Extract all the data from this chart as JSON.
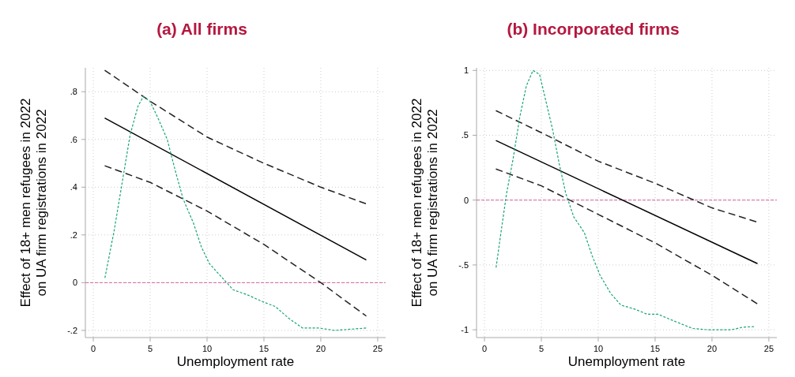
{
  "chart_data": [
    {
      "type": "line",
      "title": "(a) All firms",
      "xlabel": "Unemployment rate",
      "ylabel": "Effect of 18+ men refugees in 2022\non UA firm registrations in 2022",
      "xlim": [
        -0.7,
        25.7
      ],
      "ylim": [
        -0.23,
        0.9
      ],
      "xticks": [
        0,
        5,
        10,
        15,
        20,
        25
      ],
      "yticks": [
        {
          "value": -0.2,
          "label": "-.2"
        },
        0,
        {
          "value": 0.2,
          "label": ".2"
        },
        {
          "value": 0.4,
          "label": ".4"
        },
        {
          "value": 0.6,
          "label": ".6"
        },
        {
          "value": 0.8,
          "label": ".8"
        }
      ],
      "grid": true,
      "ref_lines": [
        {
          "axis": "y",
          "value": 0,
          "color": "#d9609f",
          "line_style": "dashed"
        }
      ],
      "series": [
        {
          "color": "#000000",
          "line_style": "solid",
          "x": [
            1,
            24
          ],
          "values": [
            0.69,
            0.095
          ]
        },
        {
          "color": "#222222",
          "line_style": "dashed",
          "x": [
            1,
            5,
            10,
            15,
            20,
            24
          ],
          "values": [
            0.89,
            0.76,
            0.61,
            0.5,
            0.4,
            0.33
          ]
        },
        {
          "color": "#222222",
          "line_style": "dashed",
          "x": [
            1,
            5,
            10,
            15,
            20,
            24
          ],
          "values": [
            0.49,
            0.42,
            0.3,
            0.16,
            0,
            -0.14
          ]
        },
        {
          "color": "#1aa37a",
          "line_style": "dotted",
          "x": [
            1.02,
            1.84,
            2.54,
            3.24,
            3.93,
            4.4,
            4.98,
            5.68,
            6.5,
            7.2,
            7.9,
            8.8,
            9.5,
            10.2,
            11.15,
            12.3,
            13.5,
            14.9,
            16,
            17.2,
            18.4,
            19.8,
            21.2,
            22.6,
            24
          ],
          "values": [
            0.02,
            0.22,
            0.42,
            0.62,
            0.74,
            0.78,
            0.76,
            0.69,
            0.6,
            0.47,
            0.35,
            0.25,
            0.15,
            0.08,
            0.03,
            -0.03,
            -0.05,
            -0.08,
            -0.1,
            -0.15,
            -0.19,
            -0.19,
            -0.2,
            -0.195,
            -0.19
          ]
        }
      ]
    },
    {
      "type": "line",
      "title": "(b) Incorporated firms",
      "xlabel": "Unemployment rate",
      "ylabel": "Effect of 18+ men refugees in 2022\non UA firm registrations in 2022",
      "xlim": [
        -0.7,
        25.7
      ],
      "ylim": [
        -1.06,
        1.02
      ],
      "xticks": [
        0,
        5,
        10,
        15,
        20,
        25
      ],
      "yticks": [
        -1,
        {
          "value": -0.5,
          "label": "-.5"
        },
        0,
        {
          "value": 0.5,
          "label": ".5"
        },
        1
      ],
      "grid": true,
      "ref_lines": [
        {
          "axis": "y",
          "value": 0,
          "color": "#d9609f",
          "line_style": "dashed"
        }
      ],
      "series": [
        {
          "color": "#000000",
          "line_style": "solid",
          "x": [
            1,
            24
          ],
          "values": [
            0.46,
            -0.49
          ]
        },
        {
          "color": "#222222",
          "line_style": "dashed",
          "x": [
            1,
            5,
            10,
            15,
            20,
            24
          ],
          "values": [
            0.69,
            0.52,
            0.3,
            0.13,
            -0.06,
            -0.17
          ]
        },
        {
          "color": "#222222",
          "line_style": "dashed",
          "x": [
            1,
            5,
            10,
            15,
            20,
            24
          ],
          "values": [
            0.24,
            0.11,
            -0.11,
            -0.33,
            -0.58,
            -0.8
          ]
        },
        {
          "color": "#1aa37a",
          "line_style": "dotted",
          "x": [
            1.02,
            1.48,
            1.94,
            2.52,
            3.1,
            3.68,
            4.26,
            4.84,
            5.3,
            6,
            6.57,
            7.15,
            7.85,
            8.77,
            9.47,
            10.16,
            11.1,
            12,
            13.2,
            14.3,
            15.25,
            16.6,
            18.3,
            19.65,
            21.7,
            22.7,
            23.8
          ],
          "values": [
            -0.52,
            -0.23,
            0.05,
            0.32,
            0.64,
            0.88,
            1,
            0.97,
            0.8,
            0.54,
            0.28,
            0.05,
            -0.13,
            -0.25,
            -0.43,
            -0.58,
            -0.72,
            -0.81,
            -0.84,
            -0.88,
            -0.88,
            -0.93,
            -0.99,
            -1,
            -1,
            -0.98,
            -0.975
          ]
        }
      ]
    }
  ]
}
